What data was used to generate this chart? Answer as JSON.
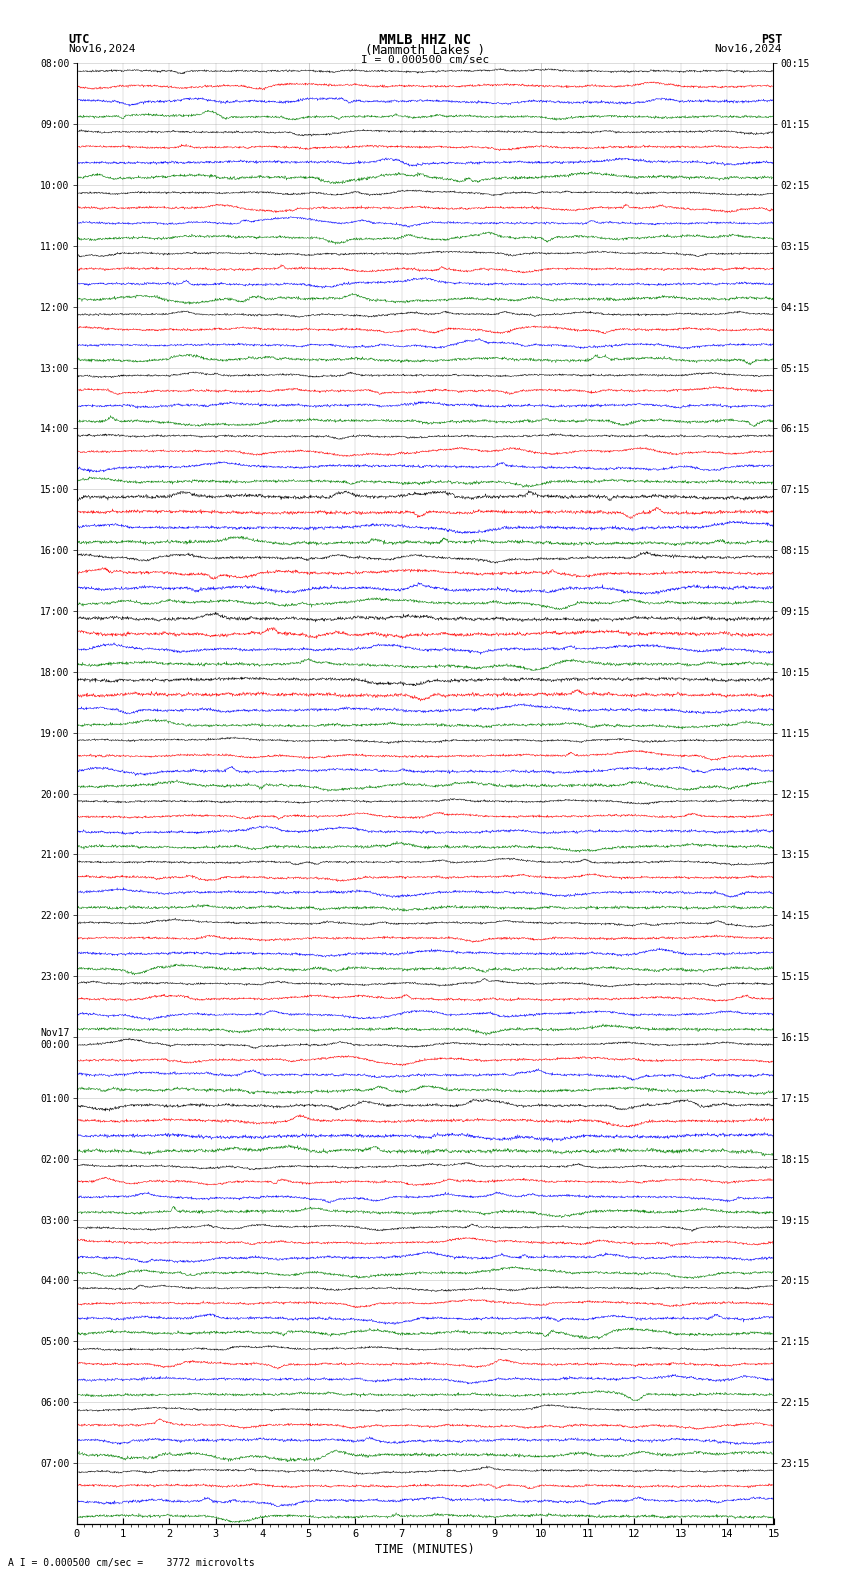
{
  "title_line1": "MMLB HHZ NC",
  "title_line2": "(Mammoth Lakes )",
  "scale_text": "I = 0.000500 cm/sec",
  "utc_label": "UTC",
  "pst_label": "PST",
  "date_left": "Nov16,2024",
  "date_right": "Nov16,2024",
  "bottom_label": "TIME (MINUTES)",
  "bottom_note": "A I = 0.000500 cm/sec =    3772 microvolts",
  "trace_colors": [
    "black",
    "red",
    "blue",
    "green"
  ],
  "fig_width": 8.5,
  "fig_height": 15.84,
  "background_color": "white",
  "grid_color": "#999999",
  "text_color": "black",
  "utc_times": [
    "08:00",
    "09:00",
    "10:00",
    "11:00",
    "12:00",
    "13:00",
    "14:00",
    "15:00",
    "16:00",
    "17:00",
    "18:00",
    "19:00",
    "20:00",
    "21:00",
    "22:00",
    "23:00",
    "Nov17\n00:00",
    "01:00",
    "02:00",
    "03:00",
    "04:00",
    "05:00",
    "06:00",
    "07:00"
  ],
  "pst_times": [
    "00:15",
    "01:15",
    "02:15",
    "03:15",
    "04:15",
    "05:15",
    "06:15",
    "07:15",
    "08:15",
    "09:15",
    "10:15",
    "11:15",
    "12:15",
    "13:15",
    "14:15",
    "15:15",
    "16:15",
    "17:15",
    "18:15",
    "19:15",
    "20:15",
    "21:15",
    "22:15",
    "23:15"
  ],
  "n_hour_slots": 24,
  "traces_per_slot": 4,
  "samples_per_trace": 1800,
  "noise_base": 0.12,
  "active_slots_high": [
    8,
    9
  ],
  "active_slots_med": [
    7,
    10,
    17
  ],
  "special_event_slot": 17,
  "special_event_color": 1,
  "special_event2_slot": 8,
  "special_event2_color": 2
}
